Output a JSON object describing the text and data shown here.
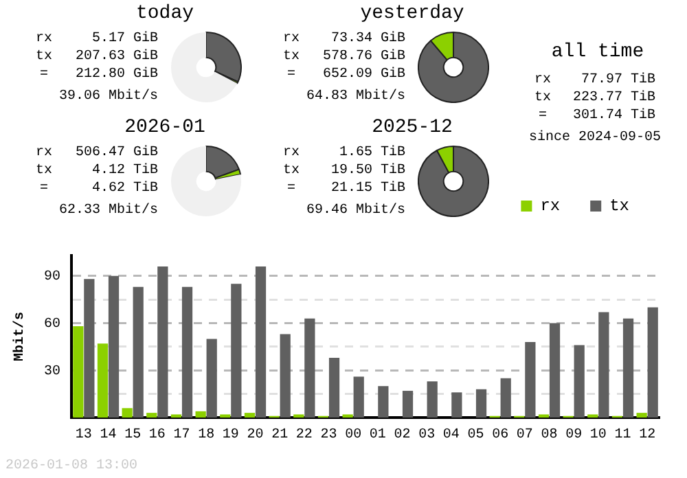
{
  "chart_data": [
    {
      "type": "donut",
      "title": "today",
      "categories": [
        null,
        null,
        null
      ],
      "values": [
        31.84,
        0.79,
        67.37
      ],
      "colors": [
        "#606060",
        "#8cd000",
        "#f0f0f0"
      ],
      "annotations": [
        "rx",
        "5.17 GiB",
        "tx",
        "207.63 GiB",
        "=",
        "212.80 GiB",
        "39.06 Mbit/s"
      ]
    },
    {
      "type": "donut",
      "title": "yesterday",
      "categories": [
        null,
        null
      ],
      "values": [
        88.75,
        11.25
      ],
      "colors": [
        "#606060",
        "#8cd000"
      ],
      "annotations": [
        "rx",
        "73.34 GiB",
        "tx",
        "578.76 GiB",
        "=",
        "652.09 GiB",
        "64.83 Mbit/s"
      ]
    },
    {
      "type": "other",
      "title": "all time",
      "annotations": [
        "rx",
        "77.97 TiB",
        "tx",
        "223.77 TiB",
        "=",
        "301.74 TiB",
        "since 2024-09-05"
      ]
    },
    {
      "type": "donut",
      "title": "2026-01",
      "categories": [
        null,
        null,
        null
      ],
      "values": [
        19.48,
        2.34,
        78.18
      ],
      "colors": [
        "#606060",
        "#8cd000",
        "#f0f0f0"
      ],
      "annotations": [
        "rx",
        "506.47 GiB",
        "tx",
        "4.12 TiB",
        "=",
        "4.62 TiB",
        "62.33 Mbit/s"
      ]
    },
    {
      "type": "donut",
      "title": "2025-12",
      "categories": [
        null,
        null
      ],
      "values": [
        92.2,
        7.8
      ],
      "colors": [
        "#606060",
        "#8cd000"
      ],
      "annotations": [
        "rx",
        "1.65 TiB",
        "tx",
        "19.50 TiB",
        "=",
        "21.15 TiB",
        "69.46 Mbit/s"
      ]
    },
    {
      "type": "bar",
      "ylabel": "Mbit/s",
      "categories": [
        "13",
        "14",
        "15",
        "16",
        "17",
        "18",
        "19",
        "20",
        "21",
        "22",
        "23",
        "00",
        "01",
        "02",
        "03",
        "04",
        "05",
        "06",
        "07",
        "08",
        "09",
        "10",
        "11",
        "12"
      ],
      "series": [
        {
          "name": "rx",
          "color": "#8cd000",
          "values": [
            58,
            47,
            6,
            3,
            2,
            4,
            2,
            3,
            1,
            2,
            1,
            2,
            0,
            0,
            0,
            0,
            0,
            1,
            1,
            2,
            1,
            2,
            1,
            3
          ]
        },
        {
          "name": "tx",
          "color": "#606060",
          "values": [
            88,
            90,
            83,
            96,
            83,
            50,
            85,
            96,
            53,
            63,
            38,
            26,
            20,
            17,
            23,
            16,
            18,
            25,
            48,
            60,
            46,
            67,
            63,
            70
          ]
        }
      ],
      "ylim": [
        0,
        103
      ],
      "yticks": [
        {
          "value": 0,
          "label": null
        },
        {
          "value": 15,
          "label": null
        },
        30,
        {
          "value": 45,
          "label": null
        },
        60,
        {
          "value": 75,
          "label": null
        },
        90
      ],
      "grid": "y",
      "legend": "top right",
      "annotations": [
        "2026-01-08 13:00"
      ]
    }
  ]
}
